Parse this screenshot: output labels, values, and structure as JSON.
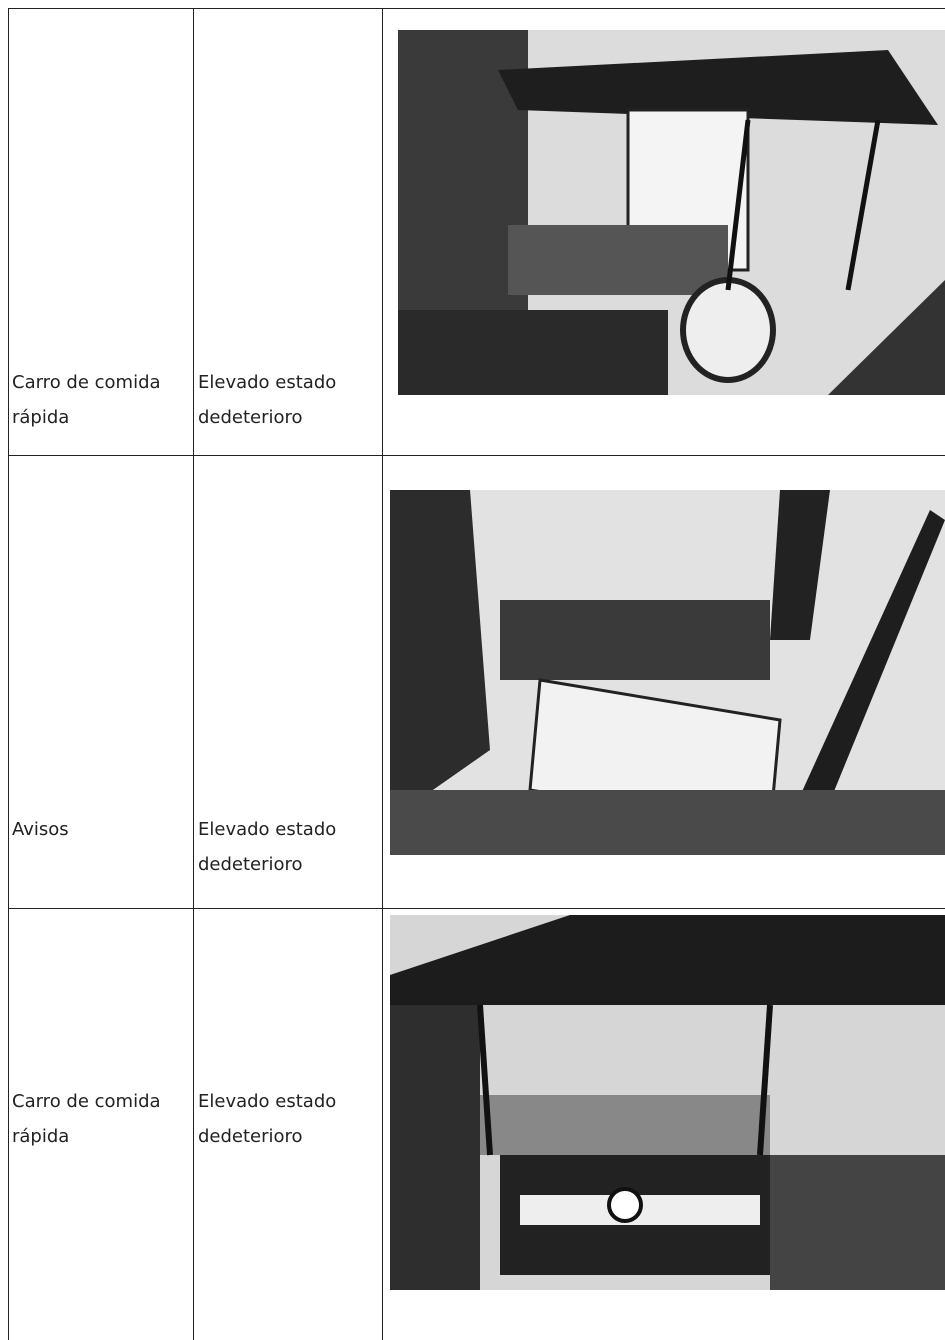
{
  "table": {
    "rows": [
      [
        "Carro de comida rápida",
        "Elevado estado dedeterioro"
      ],
      [
        "Avisos",
        "Elevado estado dedeterioro"
      ],
      [
        "Carro de comida rápida",
        "Elevado estado dedeterioro"
      ]
    ]
  }
}
